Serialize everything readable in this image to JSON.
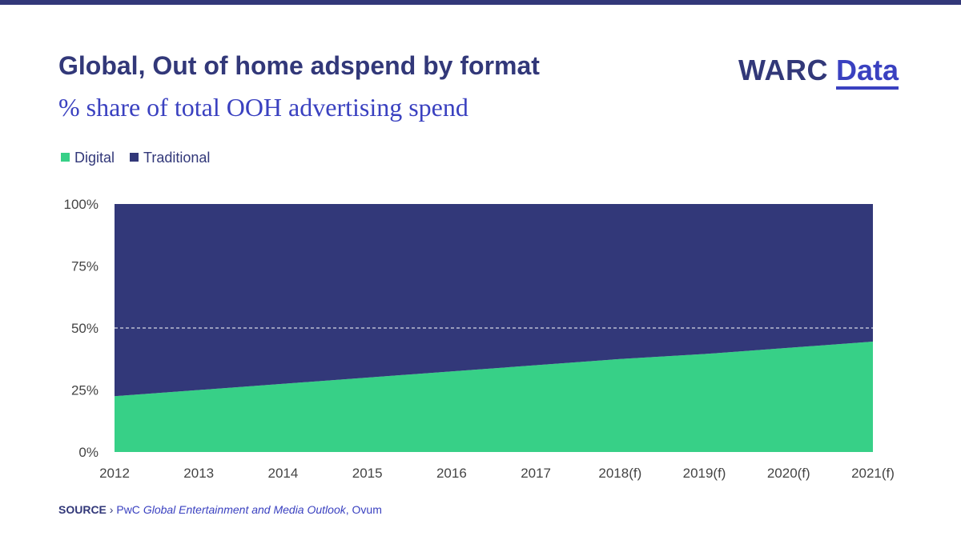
{
  "header": {
    "title": "Global, Out of home adspend by format",
    "subtitle": "% share of total OOH advertising spend"
  },
  "logo": {
    "brand": "WARC",
    "product": "Data"
  },
  "legend": {
    "items": [
      {
        "label": "Digital",
        "color": "#37d087"
      },
      {
        "label": "Traditional",
        "color": "#323879"
      }
    ]
  },
  "chart_data": {
    "type": "area",
    "stacked": true,
    "normalized_percent": true,
    "categories": [
      "2012",
      "2013",
      "2014",
      "2015",
      "2016",
      "2017",
      "2018(f)",
      "2019(f)",
      "2020(f)",
      "2021(f)"
    ],
    "series": [
      {
        "name": "Digital",
        "color": "#37d087",
        "values": [
          22.5,
          25,
          27.5,
          30,
          32.5,
          35,
          37.5,
          39.5,
          42,
          44.5
        ]
      },
      {
        "name": "Traditional",
        "color": "#323879",
        "values": [
          77.5,
          75,
          72.5,
          70,
          67.5,
          65,
          62.5,
          60.5,
          58,
          55.5
        ]
      }
    ],
    "ylim": [
      0,
      100
    ],
    "yticks": [
      0,
      25,
      50,
      75,
      100
    ],
    "ytick_labels": [
      "0%",
      "25%",
      "50%",
      "75%",
      "100%"
    ],
    "reference_line": 50,
    "xlabel": "",
    "ylabel": "",
    "legend_position": "top-left"
  },
  "source": {
    "label": "SOURCE",
    "separator": "›",
    "publisher": "PwC",
    "title": "Global Entertainment and Media Outlook",
    "rest": ", Ovum"
  }
}
